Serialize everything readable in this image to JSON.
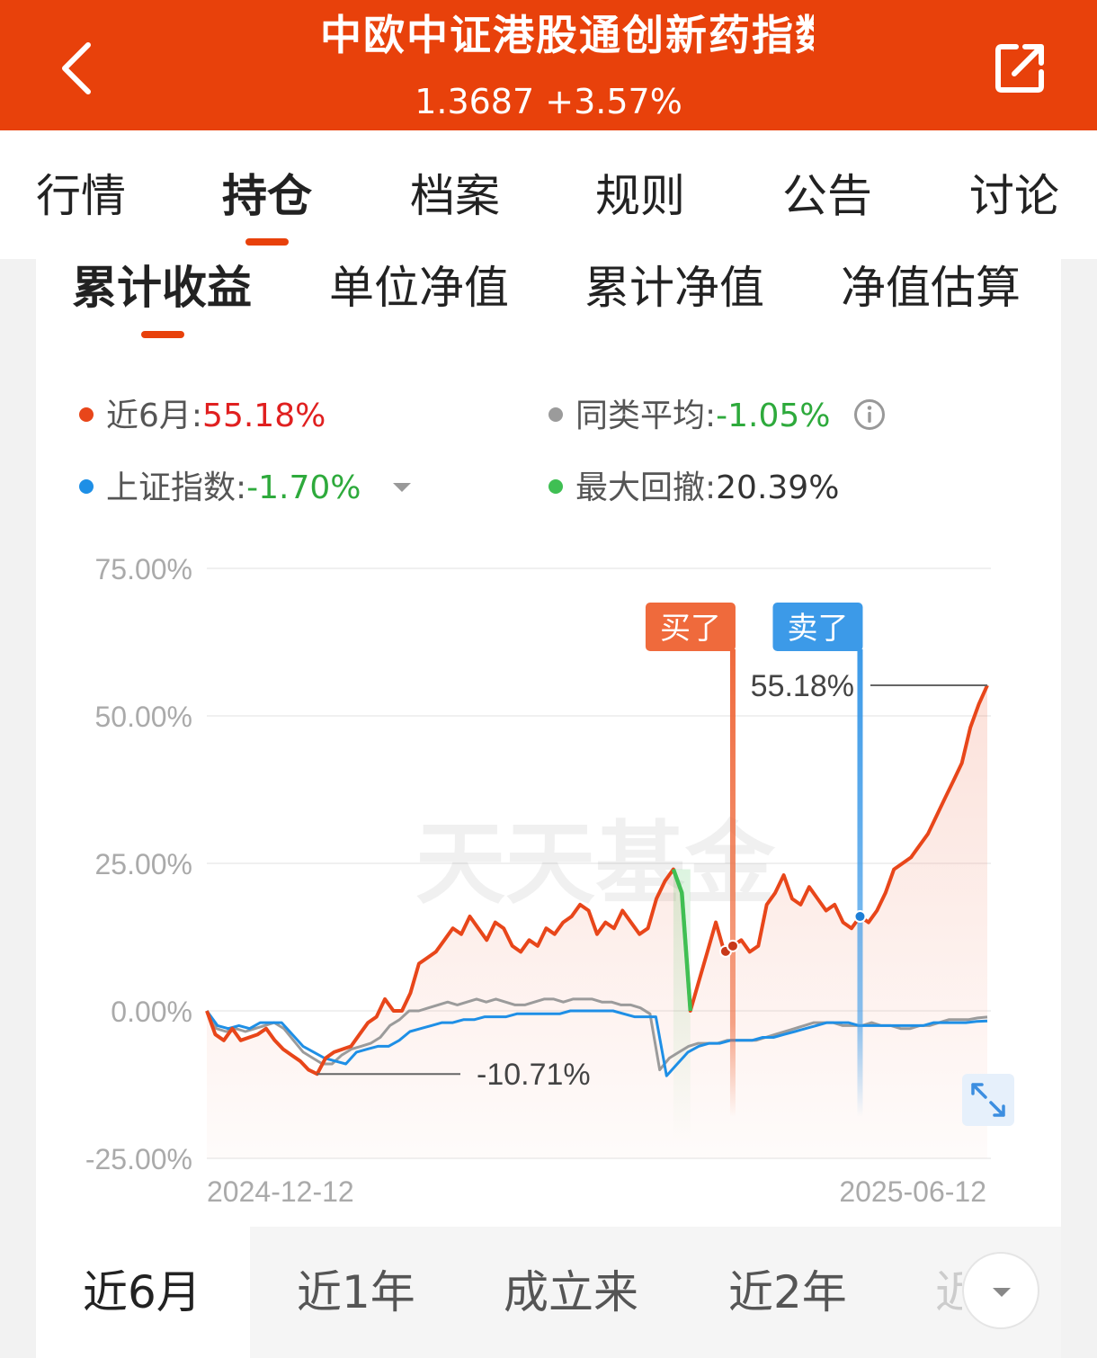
{
  "header": {
    "title": "中欧中证港股通创新药指数",
    "nav": "1.3687",
    "change": "+3.57%"
  },
  "main_tabs": [
    "行情",
    "持仓",
    "档案",
    "规则",
    "公告",
    "讨论"
  ],
  "main_tab_active": "持仓",
  "sub_tabs": [
    "累计收益",
    "单位净值",
    "累计净值",
    "净值估算"
  ],
  "sub_tab_active": "累计收益",
  "legend": {
    "fund": {
      "label": "近6月:",
      "value": "55.18%",
      "color": "#e8461a"
    },
    "peer": {
      "label": "同类平均:",
      "value": "-1.05%",
      "color": "#9b9b9b"
    },
    "index": {
      "label": "上证指数:",
      "value": "-1.70%",
      "color": "#1e8fe6"
    },
    "drawdown": {
      "label": "最大回撤:",
      "value": "20.39%",
      "color": "#3fbf53"
    }
  },
  "chart_data": {
    "type": "line",
    "x_start": "2024-12-12",
    "x_end": "2025-06-12",
    "y_ticks": [
      "75.00%",
      "50.00%",
      "25.00%",
      "0.00%",
      "-25.00%"
    ],
    "ylim": [
      -25,
      75
    ],
    "grid": true,
    "annotations": {
      "max_label": "55.18%",
      "min_label": "-10.71%",
      "buy_label": "买了",
      "sell_label": "卖了"
    },
    "series": [
      {
        "name": "近6月",
        "color": "#e8461a",
        "values": [
          0,
          -4,
          -5,
          -3,
          -5,
          -4.5,
          -4,
          -3,
          -5,
          -6.5,
          -7.5,
          -8.5,
          -10,
          -10.7,
          -8,
          -7,
          -6.5,
          -6,
          -4,
          -2,
          -1,
          2,
          0,
          0,
          3,
          8,
          9,
          10,
          12,
          14,
          13,
          16,
          14,
          12,
          15,
          14,
          11,
          10,
          12,
          11,
          14,
          13,
          15,
          16,
          18,
          17,
          13,
          15,
          14,
          17,
          15,
          13,
          14,
          19,
          22,
          24,
          20,
          0,
          5,
          10,
          15,
          10,
          11,
          12,
          10,
          11,
          18,
          20,
          23,
          19,
          18,
          21,
          19,
          17,
          18,
          15,
          14,
          16,
          15,
          17,
          20,
          24,
          25,
          26,
          28,
          30,
          33,
          36,
          39,
          42,
          48,
          52,
          55.18
        ]
      },
      {
        "name": "同类平均",
        "color": "#9b9b9b",
        "values": [
          0,
          -3,
          -3.5,
          -3,
          -3.5,
          -3,
          -2.5,
          -2,
          -3,
          -5,
          -7,
          -8,
          -9,
          -9,
          -7.5,
          -6.5,
          -6,
          -5.5,
          -4.5,
          -2.5,
          -1.5,
          0,
          0,
          0.5,
          1,
          1.5,
          1,
          1.5,
          2,
          1.5,
          2,
          1.5,
          1,
          1,
          1.5,
          2,
          2,
          1.5,
          2,
          2,
          2,
          1.5,
          1.5,
          1,
          1,
          0.5,
          -0.5,
          -10,
          -8,
          -7,
          -6,
          -5.5,
          -5.5,
          -5.5,
          -5,
          -5,
          -5,
          -5,
          -4.5,
          -4,
          -3.5,
          -3,
          -2.5,
          -2,
          -2,
          -2,
          -2.5,
          -2.5,
          -2.5,
          -2,
          -2.5,
          -2.5,
          -3,
          -3,
          -2.5,
          -2.5,
          -2,
          -1.5,
          -1.5,
          -1.5,
          -1.2,
          -1.05
        ]
      },
      {
        "name": "上证指数",
        "color": "#1e8fe6",
        "values": [
          0,
          -2.5,
          -3,
          -2.5,
          -3,
          -2,
          -2,
          -2,
          -4,
          -6,
          -7,
          -8,
          -8.5,
          -9,
          -7,
          -6.5,
          -6,
          -6,
          -5,
          -3.5,
          -3,
          -2.5,
          -2,
          -2,
          -1.5,
          -1.5,
          -1,
          -1,
          -1,
          -0.5,
          -0.5,
          -0.5,
          -0.5,
          -0.5,
          0,
          0,
          0,
          0,
          0,
          -0.5,
          -1,
          -1,
          -1,
          -11,
          -9,
          -7,
          -6,
          -5.5,
          -5.5,
          -5,
          -5,
          -5,
          -4.5,
          -4.5,
          -4,
          -3.5,
          -3,
          -2.5,
          -2,
          -2,
          -2,
          -2.5,
          -2.5,
          -2.5,
          -2.5,
          -2.5,
          -2.5,
          -2.5,
          -2,
          -2,
          -2,
          -2,
          -1.8,
          -1.7
        ]
      }
    ]
  },
  "periods": [
    "近6月",
    "近1年",
    "成立来",
    "近2年"
  ],
  "period_active": "近6月",
  "period_partial": "近",
  "watermark": "天天基金"
}
